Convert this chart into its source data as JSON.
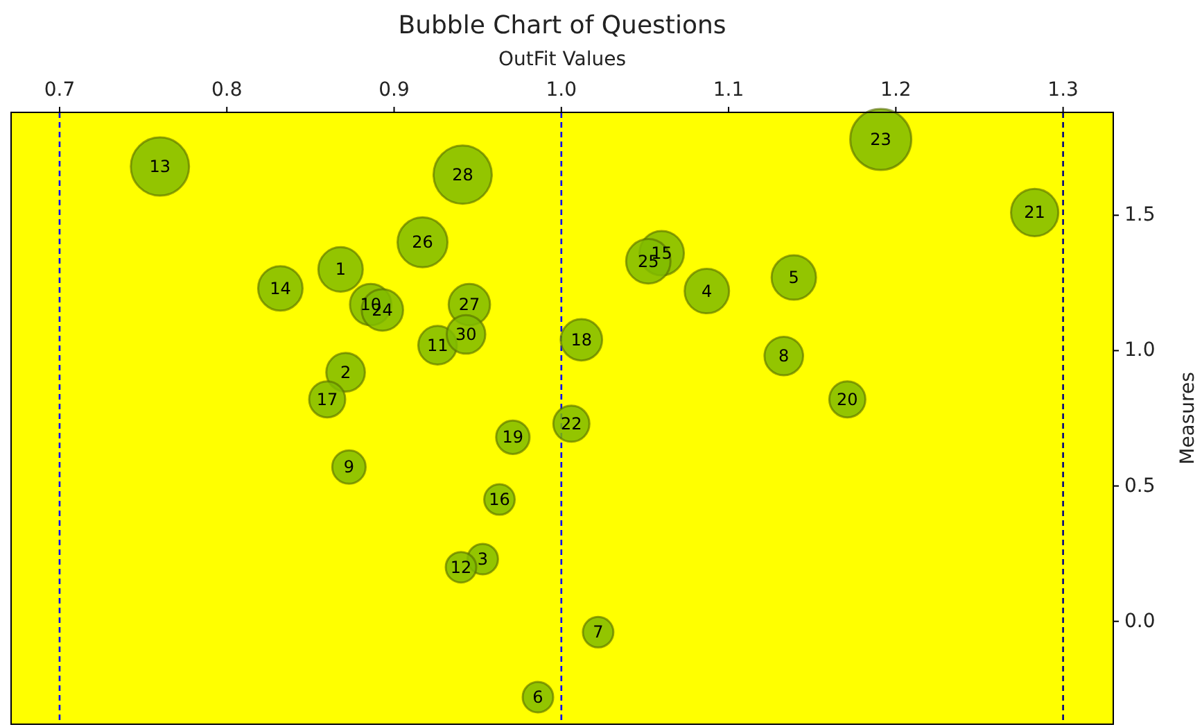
{
  "chart_data": {
    "type": "bubble",
    "title": "Bubble Chart of Questions",
    "xlabel": "OutFit Values",
    "ylabel": "Measures",
    "x": [
      0.868,
      0.871,
      0.953,
      1.087,
      1.139,
      0.986,
      1.022,
      1.133,
      0.873,
      0.886,
      0.926,
      0.94,
      0.76,
      0.832,
      1.06,
      0.963,
      0.86,
      1.012,
      0.971,
      1.171,
      1.283,
      1.006,
      1.191,
      0.893,
      1.052,
      0.917,
      0.945,
      0.941,
      0.943
    ],
    "values": [
      1.3,
      0.92,
      0.23,
      1.22,
      1.27,
      -0.28,
      -0.04,
      0.98,
      0.57,
      1.17,
      1.02,
      0.2,
      1.68,
      1.23,
      1.36,
      0.45,
      0.82,
      1.04,
      0.68,
      0.82,
      1.51,
      0.73,
      1.78,
      1.15,
      1.33,
      1.4,
      1.17,
      1.65,
      1.06
    ],
    "sizes": [
      0.53,
      0.4,
      0.25,
      0.53,
      0.53,
      0.25,
      0.25,
      0.4,
      0.3,
      0.46,
      0.4,
      0.25,
      0.91,
      0.53,
      0.53,
      0.25,
      0.35,
      0.46,
      0.3,
      0.35,
      0.6,
      0.35,
      1,
      0.46,
      0.53,
      0.67,
      0.46,
      0.91,
      0.4
    ],
    "color": "#80bb00",
    "xlim": [
      0.671,
      1.33
    ],
    "ylim": [
      -0.38,
      1.88
    ],
    "xticks": [
      0.7,
      0.8,
      0.9,
      {
        "value": 1,
        "label": "1.0"
      },
      1.1,
      1.2,
      1.3
    ],
    "yticks": [
      {
        "value": 0,
        "label": "0.0"
      },
      0.5,
      {
        "value": 1,
        "label": "1.0"
      },
      1.5
    ],
    "ref_lines": [
      {
        "axis": "x",
        "value": 0.7,
        "color": "#0000ff",
        "line_style": "dashed"
      },
      {
        "axis": "x",
        "value": 1.0,
        "color": "#0000ff",
        "line_style": "dashed"
      },
      {
        "axis": "x",
        "value": 1.3,
        "color": "#000080",
        "line_style": "dashed"
      }
    ],
    "annotations": [
      {
        "text": "1",
        "x": 0.868,
        "y": 1.3
      },
      {
        "text": "2",
        "x": 0.871,
        "y": 0.92
      },
      {
        "text": "3",
        "x": 0.953,
        "y": 0.23
      },
      {
        "text": "4",
        "x": 1.087,
        "y": 1.22
      },
      {
        "text": "5",
        "x": 1.139,
        "y": 1.27
      },
      {
        "text": "6",
        "x": 0.986,
        "y": -0.28
      },
      {
        "text": "7",
        "x": 1.022,
        "y": -0.04
      },
      {
        "text": "8",
        "x": 1.133,
        "y": 0.98
      },
      {
        "text": "9",
        "x": 0.873,
        "y": 0.57
      },
      {
        "text": "10",
        "x": 0.886,
        "y": 1.17
      },
      {
        "text": "11",
        "x": 0.926,
        "y": 1.02
      },
      {
        "text": "12",
        "x": 0.94,
        "y": 0.2
      },
      {
        "text": "13",
        "x": 0.76,
        "y": 1.68
      },
      {
        "text": "14",
        "x": 0.832,
        "y": 1.23
      },
      {
        "text": "15",
        "x": 1.06,
        "y": 1.36
      },
      {
        "text": "16",
        "x": 0.963,
        "y": 0.45
      },
      {
        "text": "17",
        "x": 0.86,
        "y": 0.82
      },
      {
        "text": "18",
        "x": 1.012,
        "y": 1.04
      },
      {
        "text": "19",
        "x": 0.971,
        "y": 0.68
      },
      {
        "text": "20",
        "x": 1.171,
        "y": 0.82
      },
      {
        "text": "21",
        "x": 1.283,
        "y": 1.51
      },
      {
        "text": "22",
        "x": 1.006,
        "y": 0.73
      },
      {
        "text": "23",
        "x": 1.191,
        "y": 1.78
      },
      {
        "text": "24",
        "x": 0.893,
        "y": 1.15
      },
      {
        "text": "25",
        "x": 1.052,
        "y": 1.33
      },
      {
        "text": "26",
        "x": 0.917,
        "y": 1.4
      },
      {
        "text": "27",
        "x": 0.945,
        "y": 1.17
      },
      {
        "text": "28",
        "x": 0.941,
        "y": 1.65
      },
      {
        "text": "30",
        "x": 0.943,
        "y": 1.06
      }
    ]
  }
}
